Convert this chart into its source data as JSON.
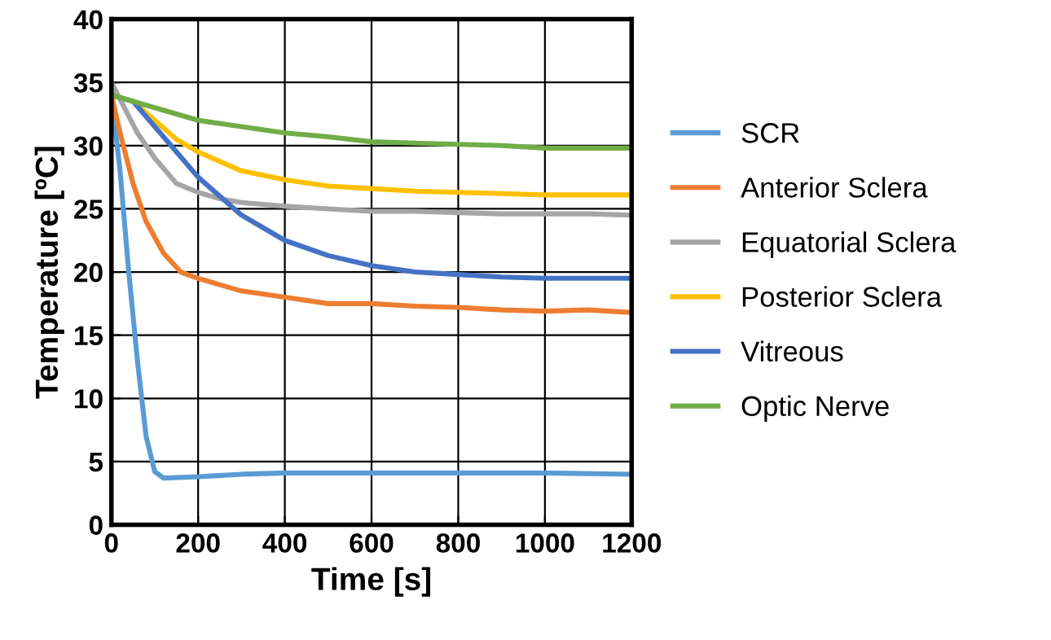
{
  "chart_data": {
    "type": "line",
    "xlabel": "Time [s]",
    "ylabel": "Temperature [ºC]",
    "xlim": [
      0,
      1200
    ],
    "xticks": [
      0,
      200,
      400,
      600,
      800,
      1000,
      1200
    ],
    "ylim": [
      0,
      40
    ],
    "yticks": [
      0,
      5,
      10,
      15,
      20,
      25,
      30,
      35,
      40
    ],
    "grid": true,
    "legend": "right",
    "marker": "none",
    "line_style": "solid",
    "series": [
      {
        "name": "SCR",
        "color": "#5b9bd5",
        "x": [
          0,
          20,
          40,
          60,
          80,
          100,
          120,
          200,
          300,
          400,
          600,
          800,
          1000,
          1200
        ],
        "values": [
          34,
          28,
          20,
          13,
          7,
          4.2,
          3.7,
          3.8,
          4.0,
          4.1,
          4.1,
          4.1,
          4.1,
          4.0
        ]
      },
      {
        "name": "Anterior Sclera",
        "color": "#ed7d31",
        "x": [
          0,
          20,
          50,
          80,
          120,
          160,
          200,
          250,
          300,
          400,
          500,
          600,
          700,
          800,
          900,
          1000,
          1100,
          1200
        ],
        "values": [
          34,
          31,
          27,
          24,
          21.5,
          20,
          19.5,
          19,
          18.5,
          18,
          17.5,
          17.5,
          17.3,
          17.2,
          17,
          16.9,
          17,
          16.8
        ]
      },
      {
        "name": "Equatorial Sclera",
        "color": "#a5a5a5",
        "x": [
          0,
          30,
          60,
          100,
          150,
          200,
          250,
          300,
          400,
          500,
          600,
          700,
          800,
          900,
          1000,
          1100,
          1200
        ],
        "values": [
          35,
          33,
          31,
          29,
          27,
          26.3,
          25.8,
          25.5,
          25.2,
          25,
          24.8,
          24.8,
          24.7,
          24.6,
          24.6,
          24.6,
          24.5
        ]
      },
      {
        "name": "Posterior Sclera",
        "color": "#ffc000",
        "x": [
          0,
          50,
          100,
          150,
          200,
          300,
          400,
          500,
          600,
          700,
          800,
          900,
          1000,
          1200
        ],
        "values": [
          34,
          33.5,
          32,
          30.5,
          29.5,
          28,
          27.3,
          26.8,
          26.6,
          26.4,
          26.3,
          26.2,
          26.1,
          26.1
        ]
      },
      {
        "name": "Vitreous",
        "color": "#4472c4",
        "x": [
          0,
          50,
          100,
          150,
          200,
          300,
          400,
          500,
          600,
          700,
          800,
          900,
          1000,
          1100,
          1200
        ],
        "values": [
          34,
          33.5,
          31.5,
          29.5,
          27.5,
          24.5,
          22.5,
          21.3,
          20.5,
          20,
          19.8,
          19.6,
          19.5,
          19.5,
          19.5
        ]
      },
      {
        "name": "Optic Nerve",
        "color": "#70ad47",
        "x": [
          0,
          50,
          100,
          200,
          300,
          400,
          500,
          600,
          700,
          800,
          900,
          1000,
          1100,
          1200
        ],
        "values": [
          34,
          33.5,
          33,
          32,
          31.5,
          31,
          30.7,
          30.3,
          30.2,
          30.1,
          30,
          29.8,
          29.8,
          29.8
        ]
      }
    ]
  }
}
